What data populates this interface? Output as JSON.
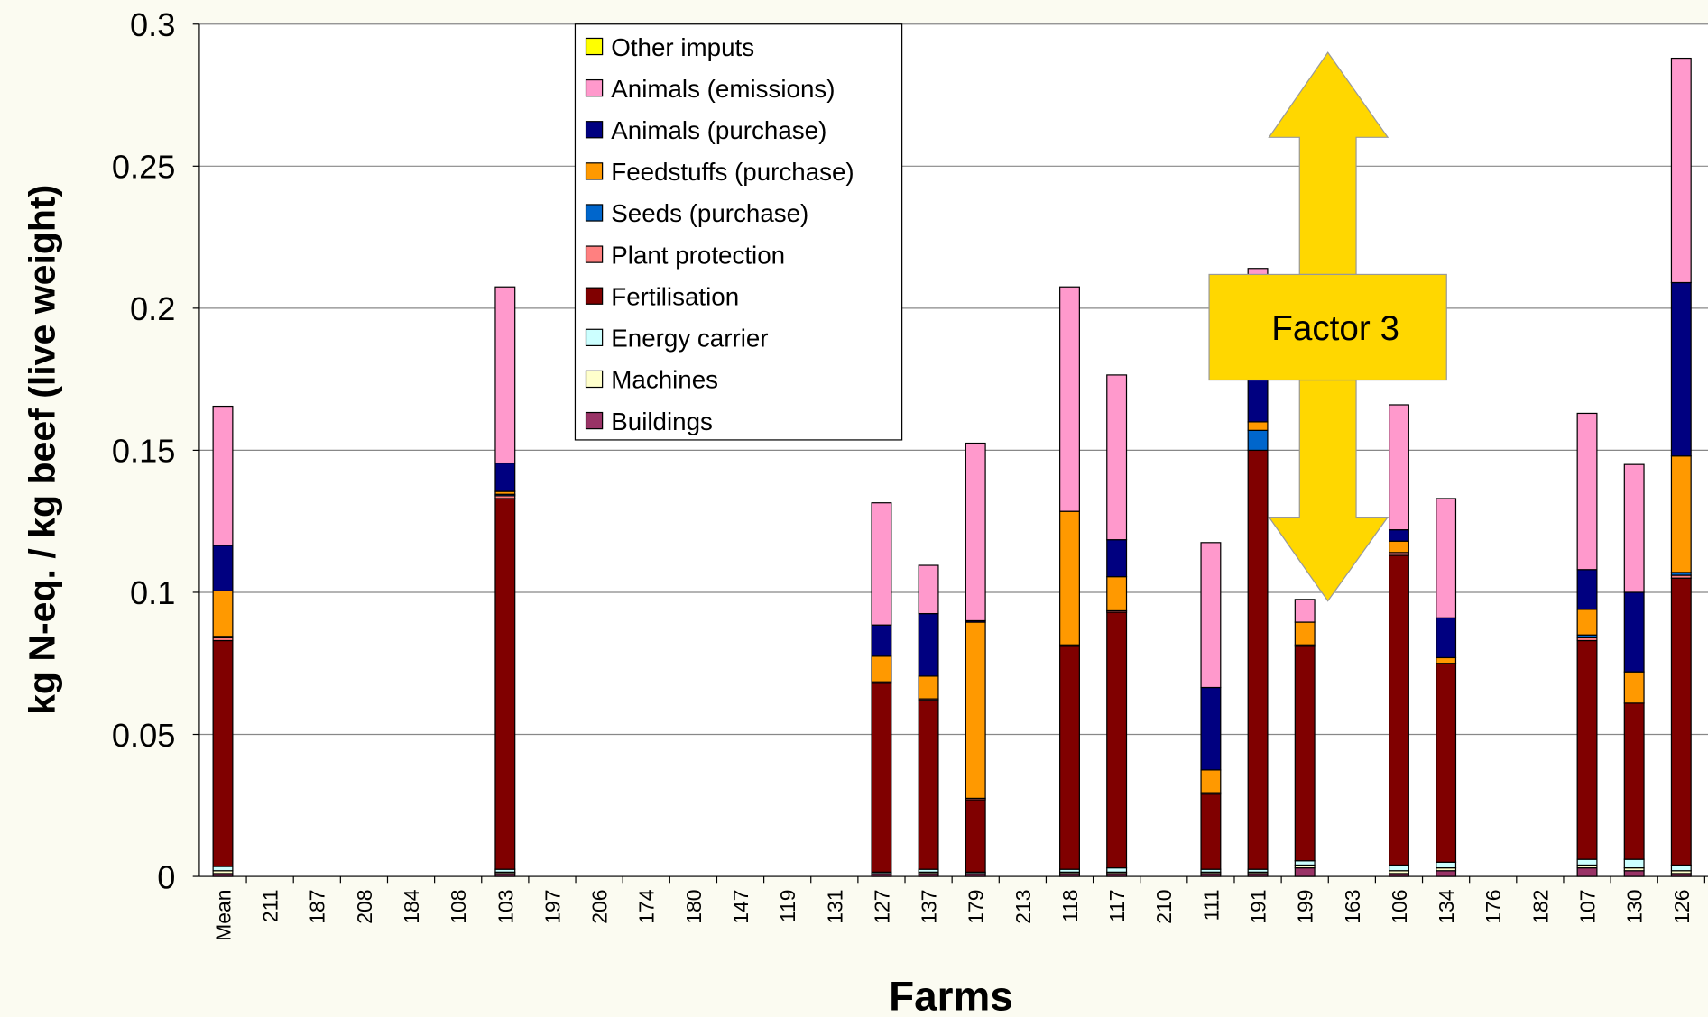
{
  "chart_data": {
    "type": "stacked_bar",
    "xlabel": "Farms",
    "ylabel": "kg N-eq. / kg beef (live weight)",
    "annotations": [
      "Factor 3"
    ],
    "categories": [
      "Mean",
      "211",
      "187",
      "208",
      "184",
      "108",
      "103",
      "197",
      "206",
      "174",
      "180",
      "147",
      "119",
      "131",
      "127",
      "137",
      "179",
      "213",
      "118",
      "117",
      "210",
      "111",
      "191",
      "199",
      "163",
      "106",
      "134",
      "176",
      "182",
      "107",
      "130",
      "126"
    ],
    "ylim": [
      0,
      0.3
    ],
    "yticks": [
      0,
      0.05,
      0.1,
      0.15,
      0.2,
      0.25,
      0.3
    ],
    "grid": true,
    "legend": "top",
    "series": [
      {
        "name": "Buildings",
        "color": "#993366",
        "values": [
          0.001,
          0,
          0,
          0,
          0,
          0,
          0.001,
          0,
          0,
          0,
          0,
          0,
          0,
          0,
          0.001,
          0.001,
          0.001,
          0,
          0.001,
          0.001,
          0,
          0.001,
          0.001,
          0.003,
          0,
          0.001,
          0.002,
          0,
          0,
          0.003,
          0.002,
          0.001
        ]
      },
      {
        "name": "Machines",
        "color": "#ffffcc",
        "values": [
          0.001,
          0,
          0,
          0,
          0,
          0,
          0.0005,
          0,
          0,
          0,
          0,
          0,
          0,
          0,
          0,
          0.0005,
          0,
          0,
          0.0005,
          0.0005,
          0,
          0.0005,
          0.0005,
          0.001,
          0,
          0.001,
          0.001,
          0,
          0,
          0.001,
          0.001,
          0.001
        ]
      },
      {
        "name": "Energy carrier",
        "color": "#ccffff",
        "values": [
          0.0015,
          0,
          0,
          0,
          0,
          0,
          0.001,
          0,
          0,
          0,
          0,
          0,
          0,
          0,
          0.0005,
          0.001,
          0.0005,
          0,
          0.001,
          0.0015,
          0,
          0.001,
          0.001,
          0.0015,
          0,
          0.002,
          0.002,
          0,
          0,
          0.002,
          0.003,
          0.002
        ]
      },
      {
        "name": "Fertilisation",
        "color": "#800000",
        "values": [
          0.0795,
          0,
          0,
          0,
          0,
          0,
          0.1305,
          0,
          0,
          0,
          0,
          0,
          0,
          0,
          0.0665,
          0.0595,
          0.0255,
          0,
          0.0785,
          0.09,
          0,
          0.0265,
          0.1475,
          0.0755,
          0,
          0.109,
          0.07,
          0,
          0,
          0.077,
          0.055,
          0.101
        ]
      },
      {
        "name": "Plant protection",
        "color": "#ff8080",
        "values": [
          0.001,
          0,
          0,
          0,
          0,
          0,
          0.001,
          0,
          0,
          0,
          0,
          0,
          0,
          0,
          0.0005,
          0.0005,
          0.0005,
          0,
          0.0005,
          0.0005,
          0,
          0.0005,
          0,
          0.0005,
          0,
          0.001,
          0,
          0,
          0,
          0.001,
          0,
          0.001
        ]
      },
      {
        "name": "Seeds (purchase)",
        "color": "#0066cc",
        "values": [
          0.0005,
          0,
          0,
          0,
          0,
          0,
          0.0005,
          0,
          0,
          0,
          0,
          0,
          0,
          0,
          0,
          0,
          0,
          0,
          0,
          0,
          0,
          0,
          0.007,
          0,
          0,
          0,
          0,
          0,
          0,
          0.001,
          0,
          0.001
        ]
      },
      {
        "name": "Feedstuffs (purchase)",
        "color": "#ff9900",
        "values": [
          0.016,
          0,
          0,
          0,
          0,
          0,
          0.001,
          0,
          0,
          0,
          0,
          0,
          0,
          0,
          0.009,
          0.008,
          0.062,
          0,
          0.047,
          0.012,
          0,
          0.008,
          0.003,
          0.008,
          0,
          0.004,
          0.002,
          0,
          0,
          0.009,
          0.011,
          0.041
        ]
      },
      {
        "name": "Animals (purchase)",
        "color": "#000080",
        "values": [
          0.016,
          0,
          0,
          0,
          0,
          0,
          0.01,
          0,
          0,
          0,
          0,
          0,
          0,
          0,
          0.011,
          0.022,
          0.0005,
          0,
          0,
          0.013,
          0,
          0.029,
          0.03,
          0,
          0,
          0.004,
          0.014,
          0,
          0,
          0.014,
          0.028,
          0.061
        ]
      },
      {
        "name": "Animals (emissions)",
        "color": "#ff99cc",
        "values": [
          0.049,
          0,
          0,
          0,
          0,
          0,
          0.062,
          0,
          0,
          0,
          0,
          0,
          0,
          0,
          0.043,
          0.017,
          0.0625,
          0,
          0.079,
          0.058,
          0,
          0.051,
          0.024,
          0.008,
          0,
          0.044,
          0.042,
          0,
          0,
          0.055,
          0.045,
          0.079
        ]
      },
      {
        "name": "Other imputs",
        "color": "#ffff00",
        "values": [
          0,
          0,
          0,
          0,
          0,
          0,
          0,
          0,
          0,
          0,
          0,
          0,
          0,
          0,
          0,
          0,
          0,
          0,
          0,
          0,
          0,
          0,
          0,
          0,
          0,
          0,
          0,
          0,
          0,
          0,
          0,
          0
        ]
      }
    ]
  }
}
